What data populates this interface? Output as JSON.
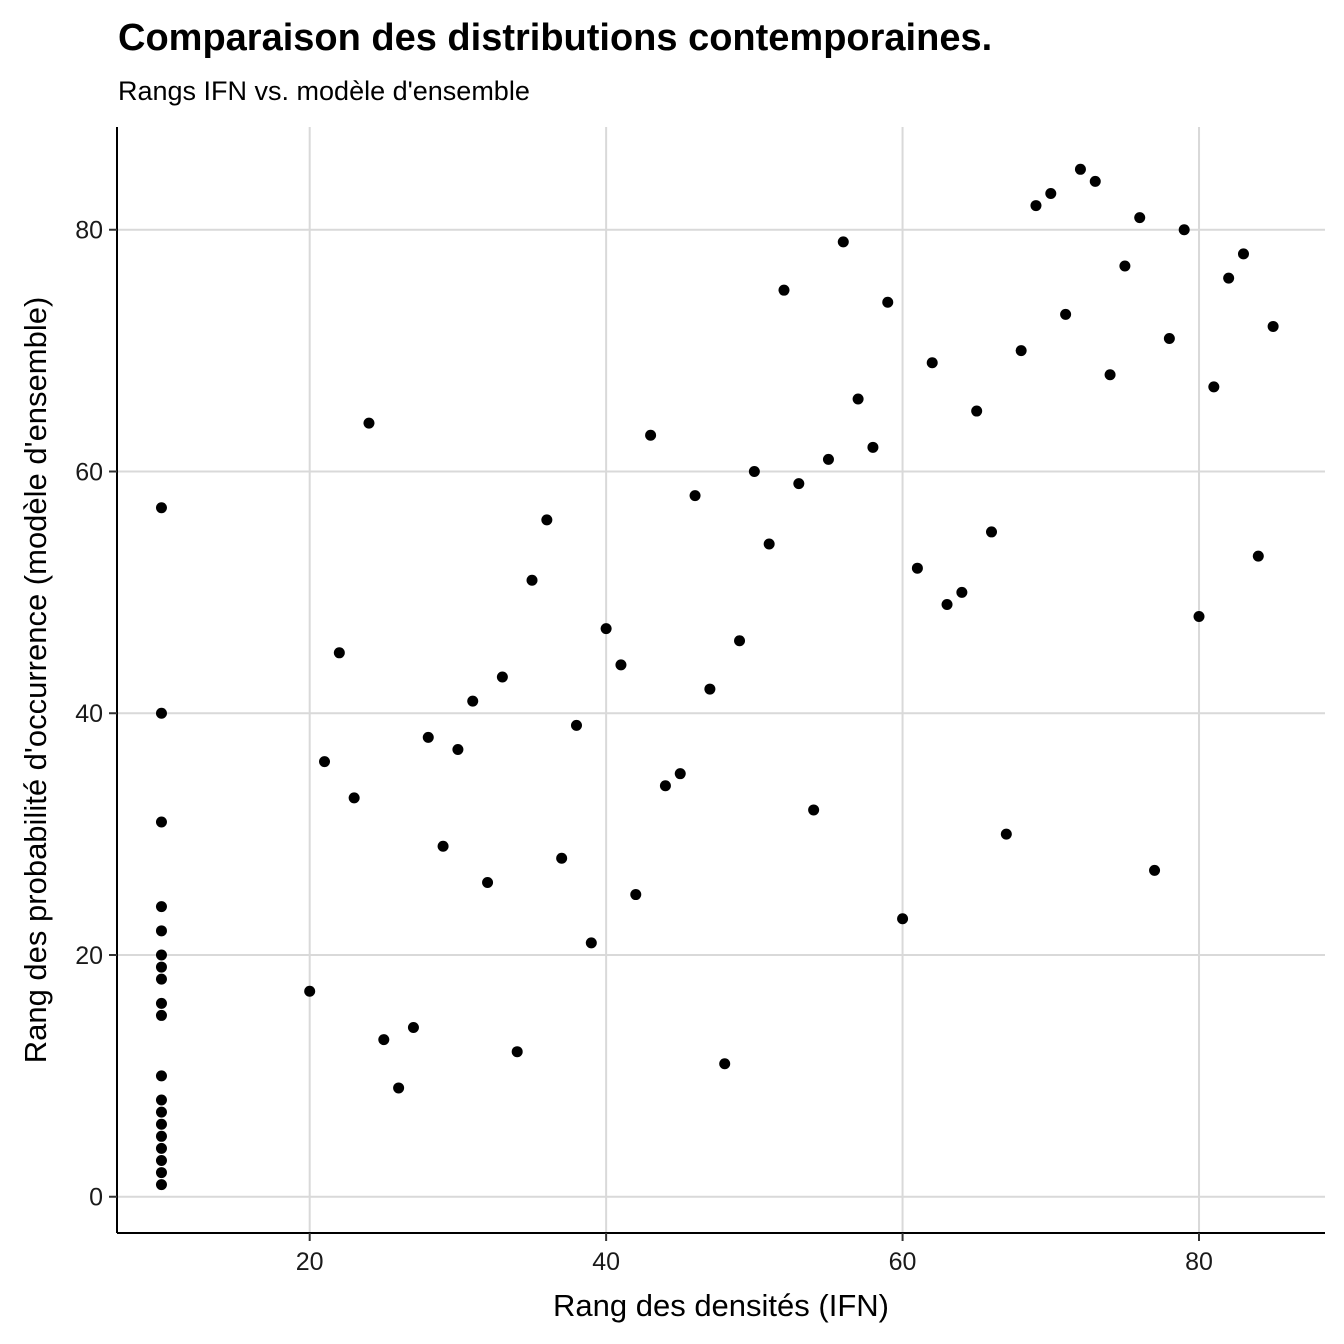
{
  "chart_data": {
    "type": "scatter",
    "title": "Comparaison des distributions contemporaines.",
    "subtitle": "Rangs IFN vs. modèle d'ensemble",
    "xlabel": "Rang des densités (IFN)",
    "ylabel": "Rang des probabilité d'occurrence (modèle d'ensemble)",
    "xlim": [
      7,
      88.5
    ],
    "ylim": [
      -3,
      88.5
    ],
    "xticks": [
      20,
      40,
      60,
      80
    ],
    "yticks": [
      0,
      20,
      40,
      60,
      80
    ],
    "grid": true,
    "point_color": "#000000",
    "series": [
      {
        "points": [
          [
            10,
            57
          ],
          [
            10,
            40
          ],
          [
            10,
            31
          ],
          [
            10,
            24
          ],
          [
            10,
            22
          ],
          [
            10,
            20
          ],
          [
            10,
            19
          ],
          [
            10,
            18
          ],
          [
            10,
            16
          ],
          [
            10,
            15
          ],
          [
            10,
            10
          ],
          [
            10,
            8
          ],
          [
            10,
            7
          ],
          [
            10,
            6
          ],
          [
            10,
            5
          ],
          [
            10,
            4
          ],
          [
            10,
            3
          ],
          [
            10,
            2
          ],
          [
            10,
            1
          ],
          [
            20,
            17
          ],
          [
            21,
            36
          ],
          [
            22,
            45
          ],
          [
            23,
            33
          ],
          [
            24,
            64
          ],
          [
            25,
            13
          ],
          [
            26,
            9
          ],
          [
            27,
            14
          ],
          [
            28,
            38
          ],
          [
            29,
            29
          ],
          [
            30,
            37
          ],
          [
            31,
            41
          ],
          [
            32,
            26
          ],
          [
            33,
            43
          ],
          [
            34,
            12
          ],
          [
            35,
            51
          ],
          [
            36,
            56
          ],
          [
            37,
            28
          ],
          [
            38,
            39
          ],
          [
            39,
            21
          ],
          [
            40,
            47
          ],
          [
            41,
            44
          ],
          [
            42,
            25
          ],
          [
            43,
            63
          ],
          [
            44,
            34
          ],
          [
            45,
            35
          ],
          [
            46,
            58
          ],
          [
            47,
            42
          ],
          [
            48,
            11
          ],
          [
            49,
            46
          ],
          [
            50,
            60
          ],
          [
            51,
            54
          ],
          [
            52,
            75
          ],
          [
            53,
            59
          ],
          [
            54,
            32
          ],
          [
            55,
            61
          ],
          [
            56,
            79
          ],
          [
            57,
            66
          ],
          [
            58,
            62
          ],
          [
            59,
            74
          ],
          [
            60,
            23
          ],
          [
            61,
            52
          ],
          [
            62,
            69
          ],
          [
            63,
            49
          ],
          [
            64,
            50
          ],
          [
            65,
            65
          ],
          [
            66,
            55
          ],
          [
            67,
            30
          ],
          [
            68,
            70
          ],
          [
            69,
            82
          ],
          [
            70,
            83
          ],
          [
            71,
            73
          ],
          [
            72,
            85
          ],
          [
            73,
            84
          ],
          [
            74,
            68
          ],
          [
            75,
            77
          ],
          [
            76,
            81
          ],
          [
            77,
            27
          ],
          [
            78,
            71
          ],
          [
            79,
            80
          ],
          [
            80,
            48
          ],
          [
            81,
            67
          ],
          [
            82,
            76
          ],
          [
            83,
            78
          ],
          [
            84,
            53
          ],
          [
            85,
            72
          ]
        ]
      }
    ]
  }
}
